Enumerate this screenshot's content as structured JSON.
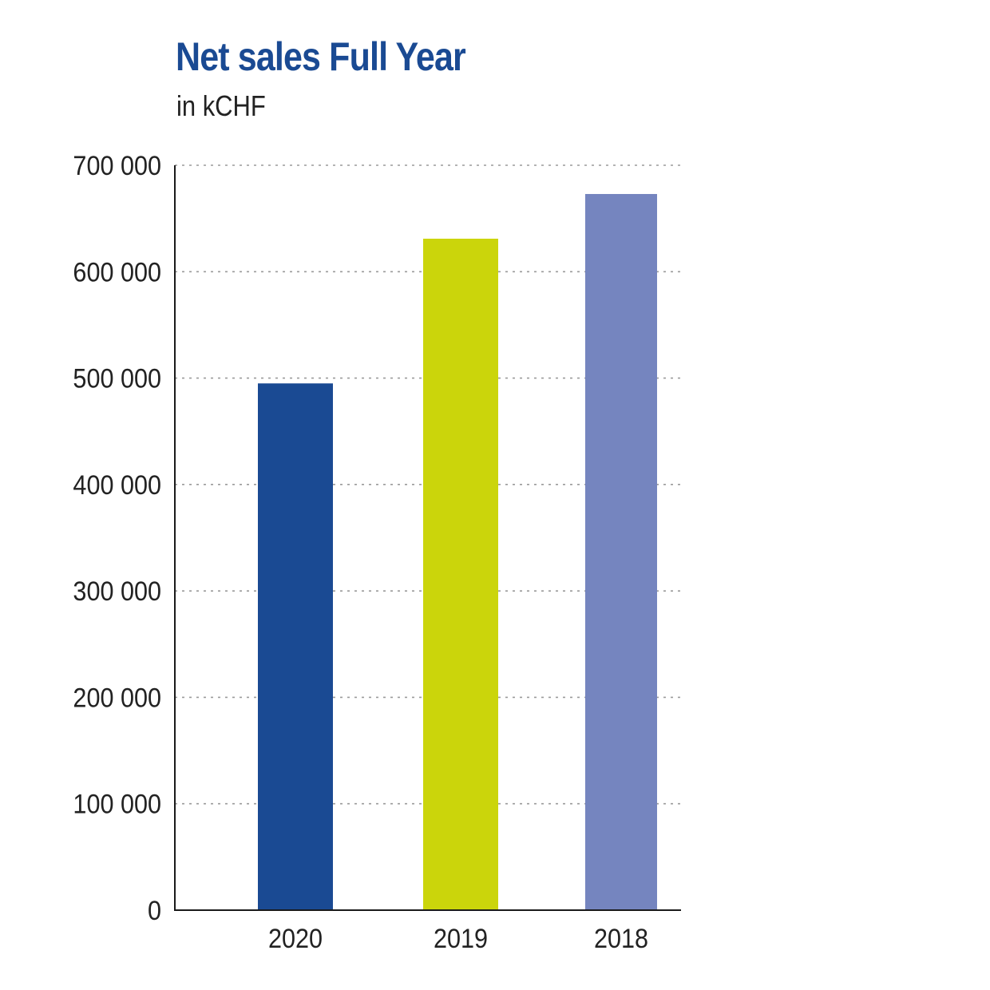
{
  "chart_data": {
    "type": "bar",
    "title": "Net sales Full Year",
    "subtitle": "in kCHF",
    "categories": [
      "2020",
      "2019",
      "2018"
    ],
    "values": [
      495000,
      631000,
      673000
    ],
    "bar_colors": [
      "#1a4a93",
      "#cbd50b",
      "#7585bf"
    ],
    "title_color": "#1a4a93",
    "ylim": [
      0,
      700000
    ],
    "yticks": [
      0,
      100000,
      200000,
      300000,
      400000,
      500000,
      600000,
      700000
    ],
    "ytick_labels": [
      "0",
      "100 000",
      "200 000",
      "300 000",
      "400 000",
      "500 000",
      "600 000",
      "700 000"
    ],
    "grid": true,
    "grid_style": "dotted",
    "legend": "none"
  }
}
